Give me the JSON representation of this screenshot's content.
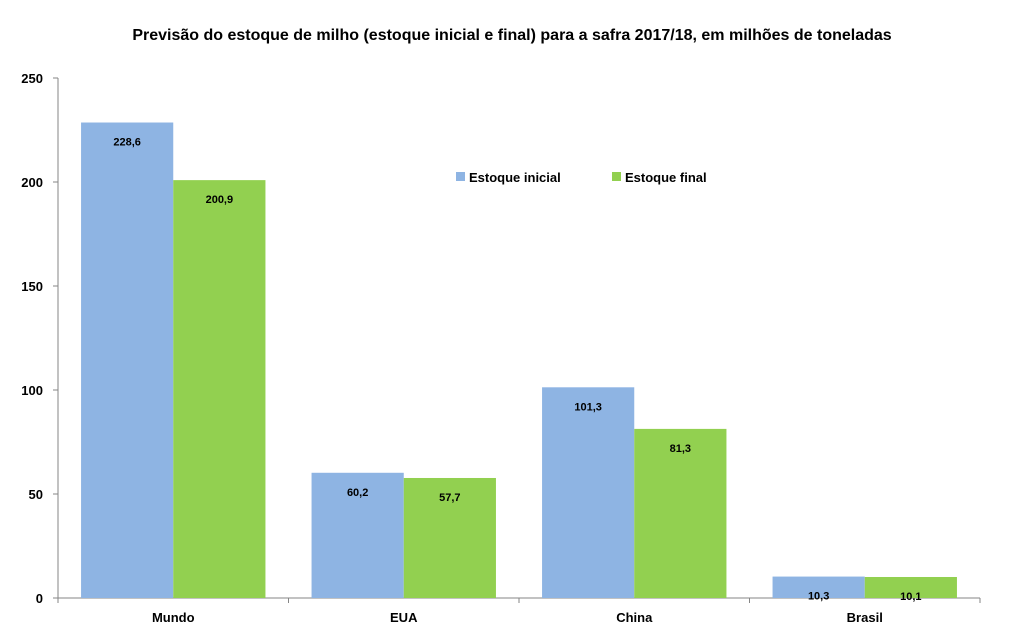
{
  "chart_data": {
    "type": "bar",
    "title": "Previsão do estoque de milho (estoque inicial e final) para a safra 2017/18, em milhões de toneladas",
    "xlabel": "",
    "ylabel": "",
    "categories": [
      "Mundo",
      "EUA",
      "China",
      "Brasil"
    ],
    "series": [
      {
        "name": "Estoque inicial",
        "values": [
          228.6,
          60.2,
          101.3,
          10.3
        ],
        "labels": [
          "228,6",
          "60,2",
          "101,3",
          "10,3"
        ],
        "color": "#8EB4E3"
      },
      {
        "name": "Estoque final",
        "values": [
          200.9,
          57.7,
          81.3,
          10.1
        ],
        "labels": [
          "200,9",
          "57,7",
          "81,3",
          "10,1"
        ],
        "color": "#92D050"
      }
    ],
    "ylim": [
      0,
      250
    ],
    "yticks": [
      0,
      50,
      100,
      150,
      200,
      250
    ],
    "grid": false,
    "legend_position": "top-center"
  }
}
